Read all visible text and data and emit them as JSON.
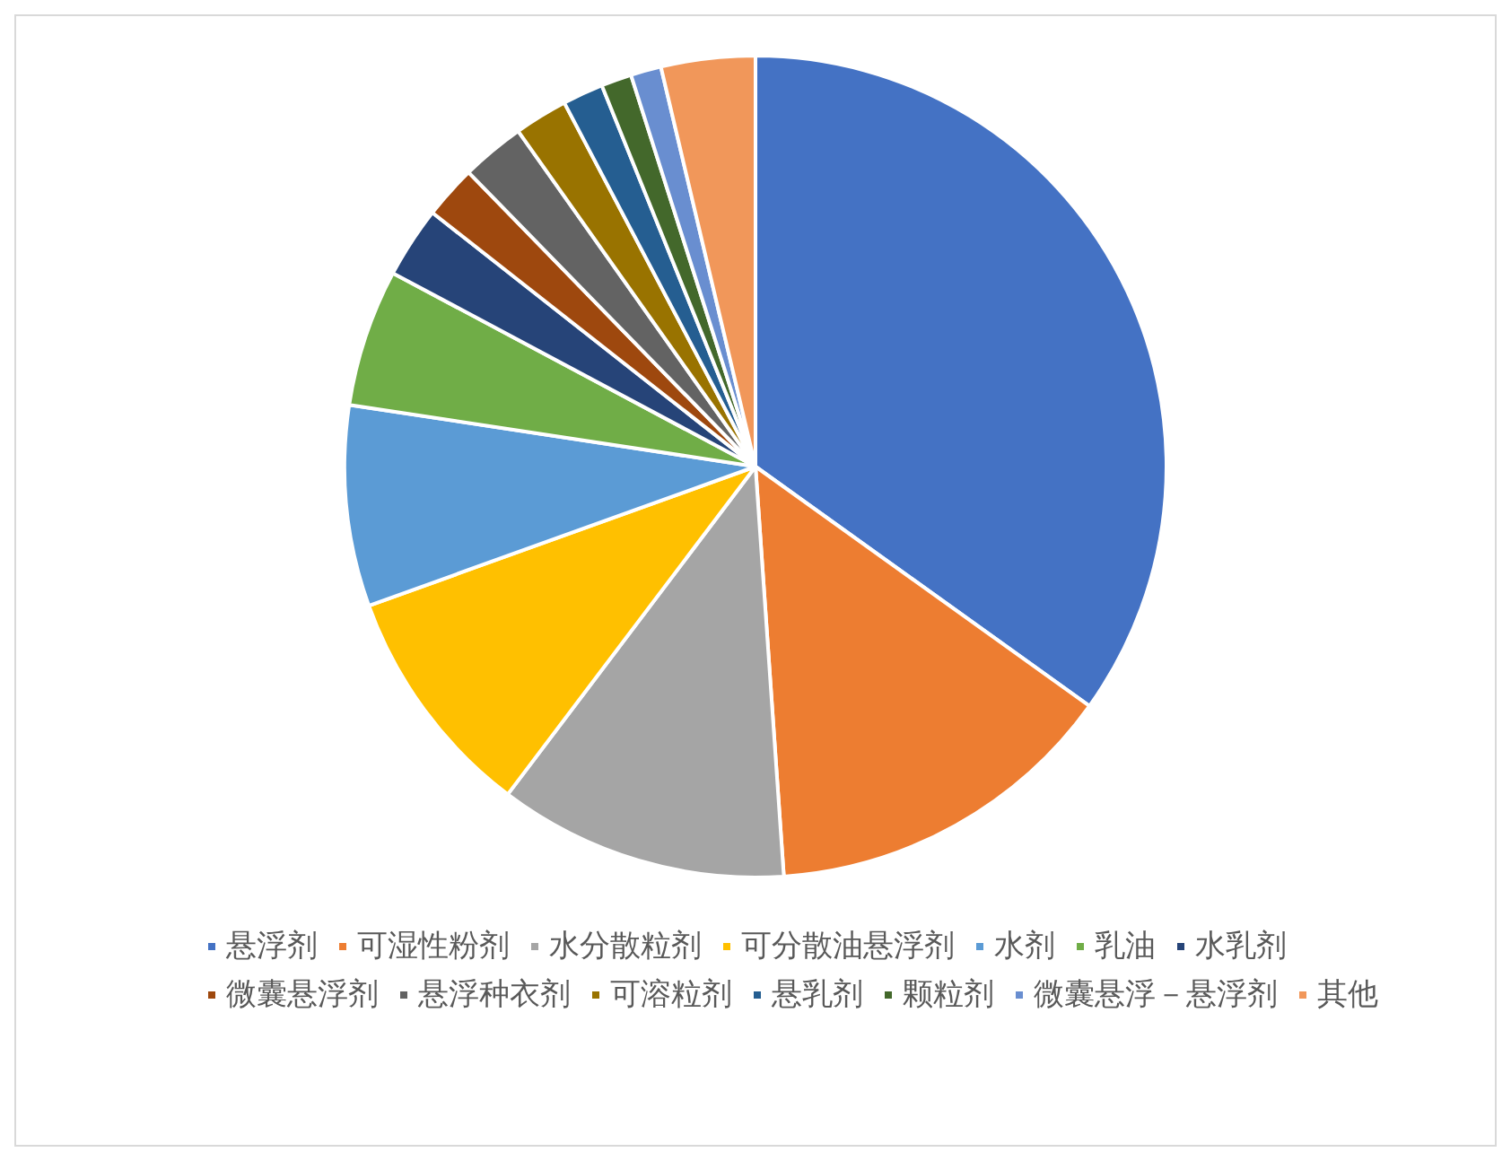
{
  "chart_data": {
    "type": "pie",
    "categories": [
      "悬浮剂",
      "可湿性粉剂",
      "水分散粒剂",
      "可分散油悬浮剂",
      "水剂",
      "乳油",
      "水乳剂",
      "微囊悬浮剂",
      "悬浮种衣剂",
      "可溶粒剂",
      "悬乳剂",
      "颗粒剂",
      "微囊悬浮－悬浮剂",
      "其他"
    ],
    "values": [
      34.9,
      14.0,
      11.4,
      9.2,
      7.9,
      5.4,
      2.8,
      2.1,
      2.5,
      2.1,
      1.6,
      1.2,
      1.2,
      3.7
    ],
    "colors": [
      "#4472c4",
      "#ed7d31",
      "#a5a5a5",
      "#ffc000",
      "#5b9bd5",
      "#70ad47",
      "#264478",
      "#9e480e",
      "#636363",
      "#997300",
      "#255e91",
      "#43682b",
      "#698ed0",
      "#f1975a"
    ],
    "legend": "bottom"
  }
}
